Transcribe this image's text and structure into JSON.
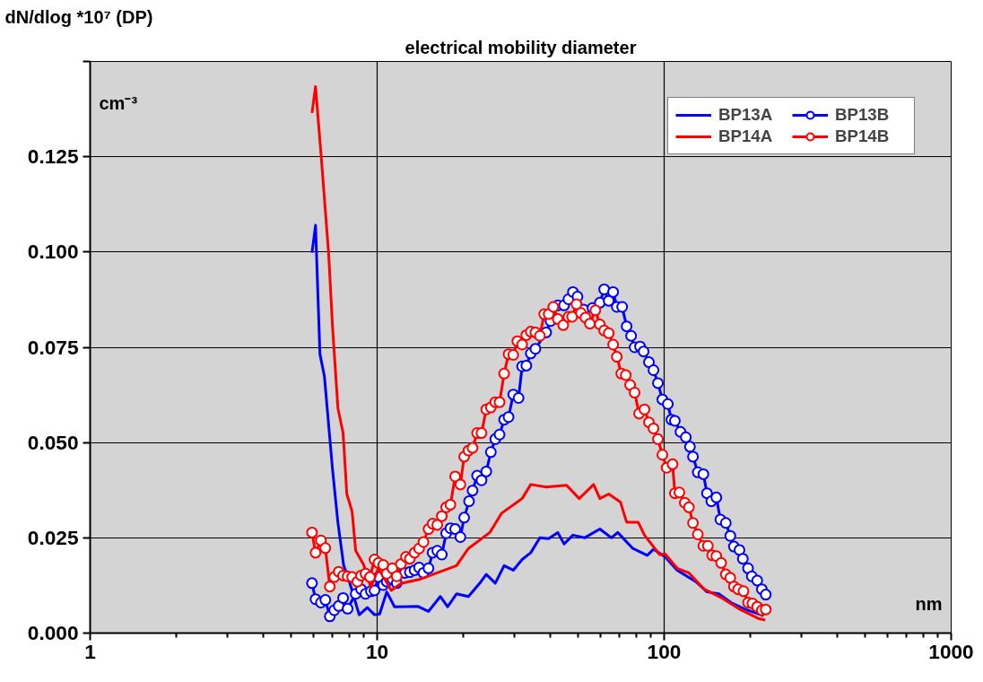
{
  "chart_data": {
    "type": "line",
    "title": "electrical mobility diameter",
    "ylabel": "dN/dlog *10⁷ (DP)",
    "xlabel": "nm",
    "annotations": [
      "cm⁻³"
    ],
    "log": "x",
    "xlim": [
      1,
      1000
    ],
    "xticks": [
      1,
      10,
      100,
      1000
    ],
    "ylim": [
      0,
      0.15
    ],
    "yticks": [
      {
        "value": 0,
        "label": "0.000"
      },
      {
        "value": 0.025,
        "label": "0.025"
      },
      {
        "value": 0.05,
        "label": "0.050"
      },
      {
        "value": 0.075,
        "label": "0.075"
      },
      {
        "value": 0.1,
        "label": "0.100"
      },
      {
        "value": 0.125,
        "label": "0.125"
      },
      {
        "value": 0.15,
        "label": null
      }
    ],
    "grid": true,
    "legend": "top right",
    "series": [
      {
        "name": "BP13A",
        "color": "#0000ff",
        "marker": "none",
        "x": [
          5.93,
          6.1,
          6.32,
          6.55,
          6.99,
          7.3,
          7.64,
          8.04,
          8.66,
          9.24,
          9.79,
          10.2,
          10.8,
          11.5,
          13.9,
          15.1,
          16.6,
          17.6,
          18.9,
          20.8,
          23.0,
          24.0,
          25.8,
          27.7,
          29.8,
          32.0,
          34.3,
          36.9,
          39.6,
          42.6,
          44.8,
          48.1,
          52.8,
          59.7,
          65.5,
          68.9,
          77.8,
          87.3,
          91.8,
          100.7,
          111,
          129,
          141,
          155,
          171,
          192,
          222
        ],
        "values": [
          0.0998,
          0.107,
          0.0732,
          0.0674,
          0.043,
          0.029,
          0.0179,
          0.013,
          0.0048,
          0.0067,
          0.0048,
          0.005,
          0.0108,
          0.0069,
          0.007,
          0.0057,
          0.0096,
          0.0069,
          0.0103,
          0.0096,
          0.0135,
          0.0154,
          0.0131,
          0.0177,
          0.0165,
          0.0193,
          0.0211,
          0.025,
          0.0248,
          0.0264,
          0.0234,
          0.0257,
          0.025,
          0.0273,
          0.025,
          0.0264,
          0.0222,
          0.0204,
          0.022,
          0.02,
          0.0165,
          0.0135,
          0.0108,
          0.0103,
          0.008,
          0.0062,
          0.0046
        ]
      },
      {
        "name": "BP13B",
        "color": "#0000ff",
        "marker": "circle",
        "x": [
          5.93,
          6.1,
          6.37,
          6.6,
          6.84,
          7.09,
          7.35,
          7.61,
          7.89,
          8.42,
          8.79,
          9.11,
          9.51,
          9.79,
          10.1,
          10.5,
          10.8,
          11.3,
          11.7,
          12.5,
          13.0,
          13.5,
          14.0,
          14.5,
          15.1,
          15.6,
          16.2,
          16.8,
          17.4,
          18.0,
          18.7,
          19.5,
          20.1,
          20.9,
          21.5,
          22.3,
          23.1,
          24.0,
          24.9,
          25.8,
          26.7,
          27.7,
          28.7,
          29.8,
          31.1,
          32.0,
          33.1,
          34.3,
          35.6,
          38.8,
          40.2,
          42.6,
          44.8,
          46.4,
          48.1,
          49.9,
          52.4,
          56.3,
          59.7,
          61.8,
          64.1,
          66.4,
          68.4,
          71.4,
          74.0,
          76.7,
          78.9,
          82.4,
          84.8,
          88.5,
          91.8,
          95.1,
          98.6,
          103,
          106,
          109,
          114,
          119,
          123,
          126,
          131,
          137,
          141,
          146,
          152,
          157,
          164,
          170,
          175,
          183,
          188,
          196,
          202,
          211,
          219,
          226
        ],
        "values": [
          0.0131,
          0.0089,
          0.008,
          0.0087,
          0.0044,
          0.006,
          0.0071,
          0.0092,
          0.0064,
          0.0103,
          0.0115,
          0.0103,
          0.011,
          0.0112,
          0.0147,
          0.0126,
          0.0135,
          0.0142,
          0.0131,
          0.0158,
          0.016,
          0.0165,
          0.0172,
          0.0158,
          0.017,
          0.0211,
          0.0216,
          0.0206,
          0.0262,
          0.0275,
          0.0273,
          0.0252,
          0.0303,
          0.0346,
          0.0374,
          0.0413,
          0.0401,
          0.0424,
          0.0475,
          0.0509,
          0.0521,
          0.056,
          0.0567,
          0.0626,
          0.0617,
          0.07,
          0.0702,
          0.0734,
          0.0746,
          0.0789,
          0.0819,
          0.086,
          0.086,
          0.0876,
          0.0895,
          0.0883,
          0.0849,
          0.0853,
          0.0867,
          0.0902,
          0.0872,
          0.0895,
          0.0856,
          0.0856,
          0.0805,
          0.078,
          0.075,
          0.0752,
          0.0739,
          0.0711,
          0.069,
          0.0656,
          0.0613,
          0.0601,
          0.056,
          0.0557,
          0.0528,
          0.0514,
          0.0489,
          0.0463,
          0.0422,
          0.0417,
          0.0367,
          0.0346,
          0.0356,
          0.0298,
          0.0289,
          0.0255,
          0.0227,
          0.0218,
          0.0195,
          0.017,
          0.0149,
          0.0138,
          0.0115,
          0.0101
        ]
      },
      {
        "name": "BP14A",
        "color": "#ff0000",
        "marker": "none",
        "x": [
          5.93,
          6.1,
          6.4,
          6.78,
          6.99,
          7.3,
          7.61,
          7.84,
          8.18,
          8.42,
          8.98,
          9.51,
          10.1,
          11.2,
          12.1,
          14.2,
          18.9,
          20.8,
          24.7,
          27.1,
          32.0,
          34.3,
          38.8,
          45.7,
          50.6,
          56.8,
          59.7,
          64.1,
          70.4,
          74.0,
          81.2,
          85.4,
          96.4,
          100.7,
          111,
          122,
          138,
          159,
          184,
          212,
          225
        ],
        "values": [
          0.1365,
          0.1434,
          0.124,
          0.0993,
          0.0805,
          0.059,
          0.0525,
          0.0365,
          0.0319,
          0.0216,
          0.0179,
          0.012,
          0.017,
          0.0112,
          0.013,
          0.0142,
          0.0177,
          0.0222,
          0.0264,
          0.0314,
          0.0353,
          0.039,
          0.0383,
          0.0388,
          0.0353,
          0.039,
          0.0353,
          0.0365,
          0.0344,
          0.0291,
          0.0291,
          0.0257,
          0.0206,
          0.0208,
          0.017,
          0.0158,
          0.0115,
          0.0092,
          0.0062,
          0.0039,
          0.0034
        ]
      },
      {
        "name": "BP14B",
        "color": "#ff0000",
        "marker": "circle",
        "x": [
          5.93,
          6.1,
          6.37,
          6.6,
          6.84,
          7.09,
          7.35,
          7.61,
          7.89,
          8.18,
          8.54,
          8.79,
          9.11,
          9.44,
          9.79,
          10.1,
          10.5,
          10.8,
          11.3,
          11.7,
          12.1,
          12.6,
          13.0,
          13.5,
          14.0,
          14.5,
          15.1,
          15.6,
          16.2,
          16.8,
          17.4,
          18.0,
          18.7,
          19.5,
          20.1,
          20.8,
          21.5,
          22.3,
          23.1,
          24.0,
          24.9,
          25.8,
          26.7,
          27.7,
          28.7,
          29.8,
          30.8,
          32.0,
          33.1,
          34.3,
          35.6,
          36.9,
          38.2,
          39.6,
          41.1,
          42.6,
          44.5,
          46.4,
          47.8,
          49.5,
          51.3,
          53.2,
          55.1,
          57.6,
          59.7,
          61.8,
          64.1,
          66.4,
          68.4,
          70.9,
          73.5,
          76.1,
          78.9,
          81.8,
          85.4,
          88.5,
          91.8,
          95.1,
          98.6,
          102,
          107,
          109,
          113,
          118,
          122,
          126,
          131,
          137,
          142,
          147,
          152,
          158,
          164,
          170,
          175,
          181,
          189,
          196,
          203,
          211,
          219,
          226
        ],
        "values": [
          0.0264,
          0.0211,
          0.0243,
          0.0223,
          0.0122,
          0.0147,
          0.0161,
          0.0151,
          0.0149,
          0.0147,
          0.0135,
          0.0151,
          0.0156,
          0.0147,
          0.0193,
          0.0184,
          0.0179,
          0.0156,
          0.017,
          0.0149,
          0.0181,
          0.02,
          0.0195,
          0.0211,
          0.0222,
          0.0239,
          0.0273,
          0.0287,
          0.0284,
          0.0307,
          0.033,
          0.0337,
          0.0411,
          0.039,
          0.0463,
          0.0479,
          0.0486,
          0.0525,
          0.0525,
          0.0587,
          0.0592,
          0.0606,
          0.0606,
          0.0681,
          0.0732,
          0.073,
          0.0766,
          0.0757,
          0.0782,
          0.0791,
          0.0789,
          0.078,
          0.0837,
          0.0837,
          0.0856,
          0.0824,
          0.0808,
          0.083,
          0.083,
          0.0863,
          0.084,
          0.0828,
          0.0812,
          0.0847,
          0.081,
          0.0794,
          0.0787,
          0.0757,
          0.0725,
          0.0681,
          0.0677,
          0.0651,
          0.0631,
          0.0576,
          0.0587,
          0.0553,
          0.0537,
          0.0509,
          0.0468,
          0.0434,
          0.0443,
          0.0367,
          0.0369,
          0.0342,
          0.033,
          0.0289,
          0.0259,
          0.0229,
          0.0229,
          0.0204,
          0.0202,
          0.0184,
          0.0154,
          0.0145,
          0.0122,
          0.0115,
          0.011,
          0.008,
          0.0078,
          0.0069,
          0.006,
          0.0062
        ]
      }
    ]
  }
}
